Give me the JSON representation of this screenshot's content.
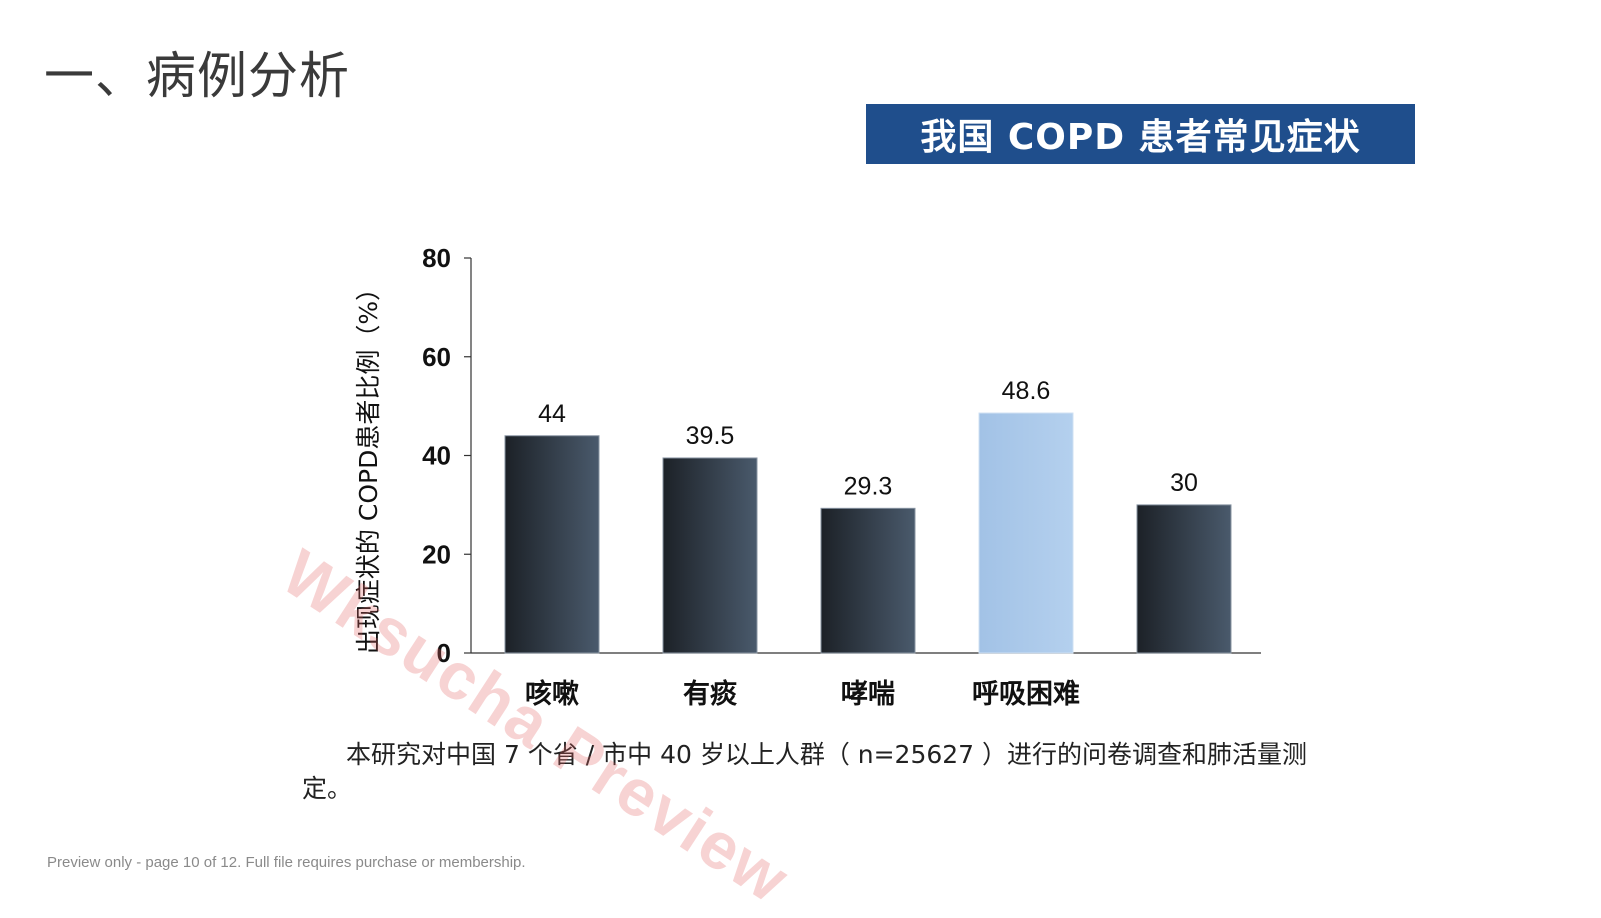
{
  "page": {
    "title": "一、病例分析",
    "caption": "本研究对中国 7 个省 / 市中 40 岁以上人群（ n=25627 ）进行的问卷调查和肺活量测定。",
    "watermark": "Wksucha Preview",
    "footer": "Preview only - page 10 of 12. Full file requires purchase or membership."
  },
  "chart_data": {
    "type": "bar",
    "title": "我国 COPD 患者常见症状",
    "ylabel": "出现症状的 COPD患者比例（%）",
    "xlabel": "",
    "ylim": [
      0,
      80
    ],
    "yticks": [
      0,
      20,
      40,
      60,
      80
    ],
    "categories": [
      "咳嗽",
      "有痰",
      "哮喘",
      "呼吸困难",
      ""
    ],
    "values": [
      44,
      39.5,
      29.3,
      48.6,
      30
    ],
    "value_labels": [
      "44",
      "39.5",
      "29.3",
      "48.6",
      "30"
    ],
    "bar_styles": [
      "dark",
      "dark",
      "dark",
      "light",
      "dark"
    ],
    "colors": {
      "dark_start": "#1c2127",
      "dark_end": "#4a5a6c",
      "light_start": "#a2c2e6",
      "light_end": "#b4d0ee",
      "banner_bg": "#1f4e8c"
    },
    "grid": false,
    "legend": "none"
  }
}
